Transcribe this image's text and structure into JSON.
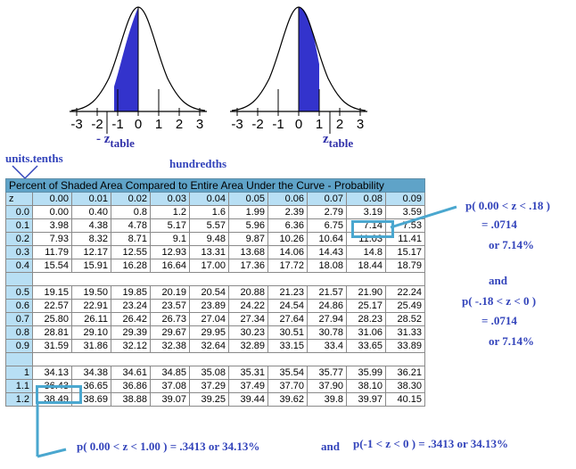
{
  "curves": {
    "tick_labels": [
      "-3",
      "-2",
      "-1",
      "0",
      "1",
      "2",
      "3"
    ],
    "left_label": {
      "prefix": "- z",
      "sub": "table"
    },
    "right_label": {
      "prefix": "z",
      "sub": "table"
    },
    "fill_color": "#3333cc"
  },
  "labels": {
    "units_tenths": "units.tenths",
    "hundredths": "hundredths"
  },
  "table": {
    "caption": "Percent of Shaded Area Compared to Entire Area Under the Curve - Probability",
    "header": [
      "z",
      "0.00",
      "0.01",
      "0.02",
      "0.03",
      "0.04",
      "0.05",
      "0.06",
      "0.07",
      "0.08",
      "0.09"
    ],
    "group1": [
      [
        "0.0",
        "0.00",
        "0.40",
        "0.8",
        "1.2",
        "1.6",
        "1.99",
        "2.39",
        "2.79",
        "3.19",
        "3.59"
      ],
      [
        "0.1",
        "3.98",
        "4.38",
        "4.78",
        "5.17",
        "5.57",
        "5.96",
        "6.36",
        "6.75",
        "7.14",
        "7.53"
      ],
      [
        "0.2",
        "7.93",
        "8.32",
        "8.71",
        "9.1",
        "9.48",
        "9.87",
        "10.26",
        "10.64",
        "11.03",
        "11.41"
      ],
      [
        "0.3",
        "11.79",
        "12.17",
        "12.55",
        "12.93",
        "13.31",
        "13.68",
        "14.06",
        "14.43",
        "14.8",
        "15.17"
      ],
      [
        "0.4",
        "15.54",
        "15.91",
        "16.28",
        "16.64",
        "17.00",
        "17.36",
        "17.72",
        "18.08",
        "18.44",
        "18.79"
      ]
    ],
    "group2": [
      [
        "0.5",
        "19.15",
        "19.50",
        "19.85",
        "20.19",
        "20.54",
        "20.88",
        "21.23",
        "21.57",
        "21.90",
        "22.24"
      ],
      [
        "0.6",
        "22.57",
        "22.91",
        "23.24",
        "23.57",
        "23.89",
        "24.22",
        "24.54",
        "24.86",
        "25.17",
        "25.49"
      ],
      [
        "0.7",
        "25.80",
        "26.11",
        "26.42",
        "26.73",
        "27.04",
        "27.34",
        "27.64",
        "27.94",
        "28.23",
        "28.52"
      ],
      [
        "0.8",
        "28.81",
        "29.10",
        "29.39",
        "29.67",
        "29.95",
        "30.23",
        "30.51",
        "30.78",
        "31.06",
        "31.33"
      ],
      [
        "0.9",
        "31.59",
        "31.86",
        "32.12",
        "32.38",
        "32.64",
        "32.89",
        "33.15",
        "33.4",
        "33.65",
        "33.89"
      ]
    ],
    "group3": [
      [
        "1",
        "34.13",
        "34.38",
        "34.61",
        "34.85",
        "35.08",
        "35.31",
        "35.54",
        "35.77",
        "35.99",
        "36.21"
      ],
      [
        "1.1",
        "36.43",
        "36.65",
        "36.86",
        "37.08",
        "37.29",
        "37.49",
        "37.70",
        "37.90",
        "38.10",
        "38.30"
      ],
      [
        "1.2",
        "38.49",
        "38.69",
        "38.88",
        "39.07",
        "39.25",
        "39.44",
        "39.62",
        "39.8",
        "39.97",
        "40.15"
      ]
    ],
    "header_bg": "#b8dff4",
    "caption_bg": "#5fa3c8"
  },
  "annotations": {
    "p1": "p( 0.00 < z < .18 )",
    "p1_eq": "=  .0714",
    "p1_pct": "or 7.14%",
    "and1": "and",
    "p2": "p( -.18 < z < 0 )",
    "p2_eq": "=  .0714",
    "p2_pct": "or 7.14%",
    "p3": "p( 0.00 < z < 1.00 ) =  .3413  or 34.13%",
    "and2": "and",
    "p4": "p(-1 < z < 0 ) = .3413 or 34.13%",
    "highlight_color": "#4aa7cf",
    "text_color": "#3344bb"
  }
}
